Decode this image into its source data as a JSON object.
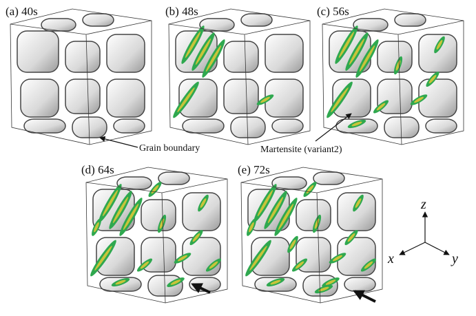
{
  "panels": [
    {
      "label": "(a) 40s"
    },
    {
      "label": "(b) 48s"
    },
    {
      "label": "(c) 56s"
    },
    {
      "label": "(d) 64s"
    },
    {
      "label": "(e) 72s"
    }
  ],
  "annotations": {
    "grain_boundary": "Grain boundary",
    "martensite": "Martensite (variant2)"
  },
  "axes": {
    "z": "z",
    "x": "x",
    "y": "y"
  }
}
